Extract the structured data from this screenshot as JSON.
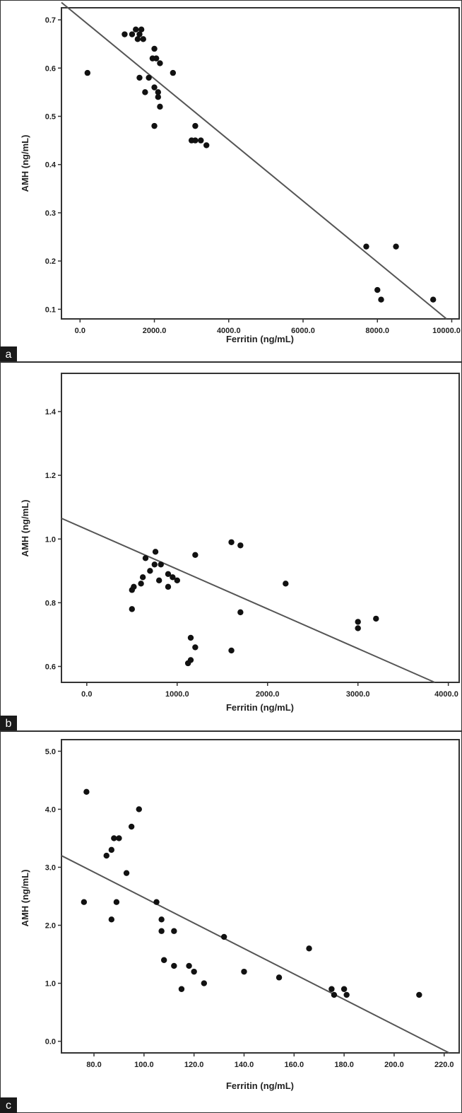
{
  "chart_data": [
    {
      "type": "scatter",
      "panel_label": "a",
      "title": "",
      "xlabel": "Ferritin (ng/mL)",
      "ylabel": "AMH  (ng/mL)",
      "xlim": [
        -500,
        10200
      ],
      "ylim": [
        0.08,
        0.725
      ],
      "xticks": [
        0,
        2000,
        4000,
        6000,
        8000,
        10000
      ],
      "xtick_labels": [
        "0.0",
        "2000.0",
        "4000.0",
        "6000.0",
        "8000.0",
        "10000.0"
      ],
      "yticks": [
        0.1,
        0.2,
        0.3,
        0.4,
        0.5,
        0.6,
        0.7
      ],
      "ytick_labels": [
        "0.1",
        "0.2",
        "0.3",
        "0.4",
        "0.5",
        "0.6",
        "0.7"
      ],
      "grid": false,
      "points": [
        {
          "x": 200,
          "y": 0.59
        },
        {
          "x": 1200,
          "y": 0.67
        },
        {
          "x": 1400,
          "y": 0.67
        },
        {
          "x": 1500,
          "y": 0.68
        },
        {
          "x": 1550,
          "y": 0.66
        },
        {
          "x": 1600,
          "y": 0.67
        },
        {
          "x": 1650,
          "y": 0.68
        },
        {
          "x": 1700,
          "y": 0.66
        },
        {
          "x": 1600,
          "y": 0.58
        },
        {
          "x": 1750,
          "y": 0.55
        },
        {
          "x": 1850,
          "y": 0.58
        },
        {
          "x": 1950,
          "y": 0.62
        },
        {
          "x": 2000,
          "y": 0.64
        },
        {
          "x": 2050,
          "y": 0.62
        },
        {
          "x": 2100,
          "y": 0.55
        },
        {
          "x": 2150,
          "y": 0.61
        },
        {
          "x": 2000,
          "y": 0.56
        },
        {
          "x": 2100,
          "y": 0.54
        },
        {
          "x": 2150,
          "y": 0.52
        },
        {
          "x": 2000,
          "y": 0.48
        },
        {
          "x": 2500,
          "y": 0.59
        },
        {
          "x": 3000,
          "y": 0.45
        },
        {
          "x": 3100,
          "y": 0.48
        },
        {
          "x": 3100,
          "y": 0.45
        },
        {
          "x": 3250,
          "y": 0.45
        },
        {
          "x": 3400,
          "y": 0.44
        },
        {
          "x": 7700,
          "y": 0.23
        },
        {
          "x": 8500,
          "y": 0.23
        },
        {
          "x": 8000,
          "y": 0.14
        },
        {
          "x": 8100,
          "y": 0.12
        },
        {
          "x": 9500,
          "y": 0.12
        }
      ],
      "fit_line": {
        "x": [
          -500,
          9860
        ],
        "y": [
          0.736,
          0.08
        ]
      }
    },
    {
      "type": "scatter",
      "panel_label": "b",
      "title": "",
      "xlabel": "Ferritin (ng/mL)",
      "ylabel": "AMH  (ng/mL)",
      "xlim": [
        -280,
        4120
      ],
      "ylim": [
        0.55,
        1.52
      ],
      "xticks": [
        0,
        1000,
        2000,
        3000,
        4000
      ],
      "xtick_labels": [
        "0.0",
        "1000.0",
        "2000.0",
        "3000.0",
        "4000.0"
      ],
      "yticks": [
        0.6,
        0.8,
        1.0,
        1.2,
        1.4
      ],
      "ytick_labels": [
        "0.6",
        "0.8",
        "1.0",
        "1.2",
        "1.4"
      ],
      "grid": false,
      "points": [
        {
          "x": 500,
          "y": 0.84
        },
        {
          "x": 500,
          "y": 0.78
        },
        {
          "x": 520,
          "y": 0.85
        },
        {
          "x": 600,
          "y": 0.86
        },
        {
          "x": 620,
          "y": 0.88
        },
        {
          "x": 650,
          "y": 0.94
        },
        {
          "x": 700,
          "y": 0.9
        },
        {
          "x": 750,
          "y": 0.92
        },
        {
          "x": 760,
          "y": 0.96
        },
        {
          "x": 800,
          "y": 0.87
        },
        {
          "x": 820,
          "y": 0.92
        },
        {
          "x": 900,
          "y": 0.89
        },
        {
          "x": 900,
          "y": 0.85
        },
        {
          "x": 950,
          "y": 0.88
        },
        {
          "x": 1000,
          "y": 0.87
        },
        {
          "x": 1120,
          "y": 0.61
        },
        {
          "x": 1150,
          "y": 0.62
        },
        {
          "x": 1150,
          "y": 0.69
        },
        {
          "x": 1200,
          "y": 0.66
        },
        {
          "x": 1200,
          "y": 0.95
        },
        {
          "x": 1600,
          "y": 0.99
        },
        {
          "x": 1700,
          "y": 0.98
        },
        {
          "x": 1700,
          "y": 0.77
        },
        {
          "x": 1600,
          "y": 0.65
        },
        {
          "x": 2200,
          "y": 0.86
        },
        {
          "x": 3000,
          "y": 0.74
        },
        {
          "x": 3000,
          "y": 0.72
        },
        {
          "x": 3200,
          "y": 0.75
        }
      ],
      "fit_line": {
        "x": [
          -280,
          3850
        ],
        "y": [
          1.065,
          0.55
        ]
      }
    },
    {
      "type": "scatter",
      "panel_label": "c",
      "title": "",
      "xlabel": "Ferritin (ng/mL)",
      "ylabel": "AMH  (ng/mL)",
      "xlim": [
        67,
        226
      ],
      "ylim": [
        -0.2,
        5.2
      ],
      "xticks": [
        80,
        100,
        120,
        140,
        160,
        180,
        200,
        220
      ],
      "xtick_labels": [
        "80.0",
        "100.0",
        "120.0",
        "140.0",
        "160.0",
        "180.0",
        "200.0",
        "220.0"
      ],
      "yticks": [
        0,
        1,
        2,
        3,
        4,
        5
      ],
      "ytick_labels": [
        "0.0",
        "1.0",
        "2.0",
        "3.0",
        "4.0",
        "5.0"
      ],
      "grid": false,
      "points": [
        {
          "x": 77,
          "y": 4.3
        },
        {
          "x": 76,
          "y": 2.4
        },
        {
          "x": 85,
          "y": 3.2
        },
        {
          "x": 87,
          "y": 3.3
        },
        {
          "x": 88,
          "y": 3.5
        },
        {
          "x": 90,
          "y": 3.5
        },
        {
          "x": 87,
          "y": 2.1
        },
        {
          "x": 89,
          "y": 2.4
        },
        {
          "x": 93,
          "y": 2.9
        },
        {
          "x": 95,
          "y": 3.7
        },
        {
          "x": 98,
          "y": 4.0
        },
        {
          "x": 105,
          "y": 2.4
        },
        {
          "x": 107,
          "y": 2.1
        },
        {
          "x": 107,
          "y": 1.9
        },
        {
          "x": 108,
          "y": 1.4
        },
        {
          "x": 112,
          "y": 1.9
        },
        {
          "x": 112,
          "y": 1.3
        },
        {
          "x": 115,
          "y": 0.9
        },
        {
          "x": 118,
          "y": 1.3
        },
        {
          "x": 120,
          "y": 1.2
        },
        {
          "x": 124,
          "y": 1.0
        },
        {
          "x": 132,
          "y": 1.8
        },
        {
          "x": 140,
          "y": 1.2
        },
        {
          "x": 154,
          "y": 1.1
        },
        {
          "x": 166,
          "y": 1.6
        },
        {
          "x": 175,
          "y": 0.9
        },
        {
          "x": 176,
          "y": 0.8
        },
        {
          "x": 180,
          "y": 0.9
        },
        {
          "x": 181,
          "y": 0.8
        },
        {
          "x": 210,
          "y": 0.8
        }
      ],
      "fit_line": {
        "x": [
          67,
          222
        ],
        "y": [
          3.2,
          -0.2
        ]
      }
    }
  ]
}
